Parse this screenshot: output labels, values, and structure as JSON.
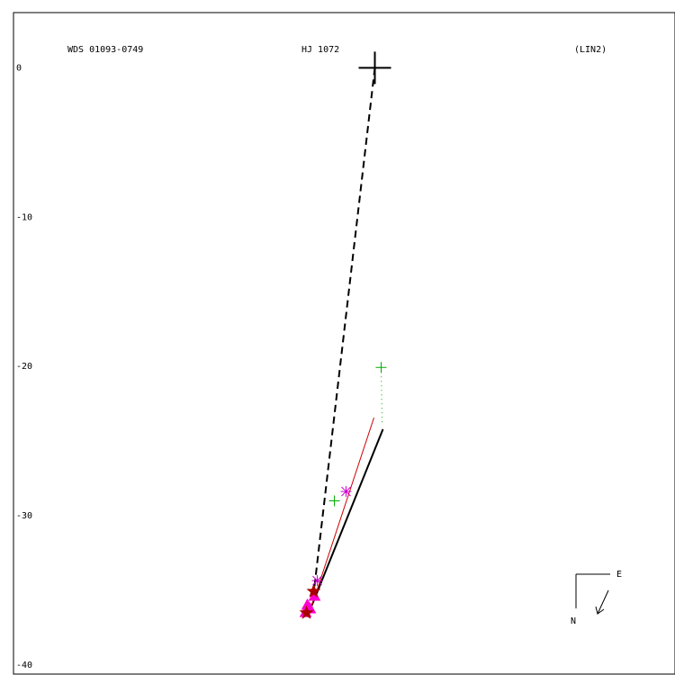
{
  "chart_data": {
    "type": "scatter",
    "wds_id": "WDS 01093-0749",
    "title": "HJ 1072",
    "note": "(LIN2)",
    "compass": {
      "east": "E",
      "north": "N"
    },
    "xlim": [
      -24.2,
      20.1
    ],
    "ylim": [
      -40.6,
      3.7
    ],
    "yticks": [
      0,
      -10,
      -20,
      -30,
      -40
    ],
    "grid": false,
    "series": [
      {
        "style": "dashed-line",
        "color": "#000000",
        "x": [
          0,
          -4.1
        ],
        "y": [
          0,
          -35.2
        ]
      },
      {
        "style": "solid-line",
        "color": "#000000",
        "x": [
          0.54,
          -4.4
        ],
        "y": [
          -24.2,
          -36.45
        ]
      },
      {
        "style": "thin-line",
        "color": "#cc0000",
        "x": [
          -0.06,
          -4.28
        ],
        "y": [
          -23.43,
          -36.2
        ]
      },
      {
        "style": "dotted-line",
        "color": "#00aa00",
        "x": [
          0.42,
          0.48
        ],
        "y": [
          -20.06,
          -23.8
        ]
      },
      {
        "style": "big-plus",
        "color": "#000000",
        "x": [
          0
        ],
        "y": [
          0
        ]
      },
      {
        "style": "plus",
        "color": "#00aa00",
        "x": [
          0.42,
          -2.71
        ],
        "y": [
          -20.06,
          -29.0
        ]
      },
      {
        "style": "asterisk",
        "color": "#cc00cc",
        "x": [
          -1.93,
          -3.86
        ],
        "y": [
          -28.37,
          -34.34
        ]
      },
      {
        "style": "triangle",
        "color": "#ff00cc",
        "x": [
          -4.64,
          -4.52,
          -4.04,
          -4.34
        ],
        "y": [
          -36.45,
          -35.96,
          -35.36,
          -36.2
        ]
      },
      {
        "style": "star",
        "color": "#aa0000",
        "x": [
          -4.1,
          -4.58
        ],
        "y": [
          -35.06,
          -36.5
        ]
      }
    ]
  }
}
